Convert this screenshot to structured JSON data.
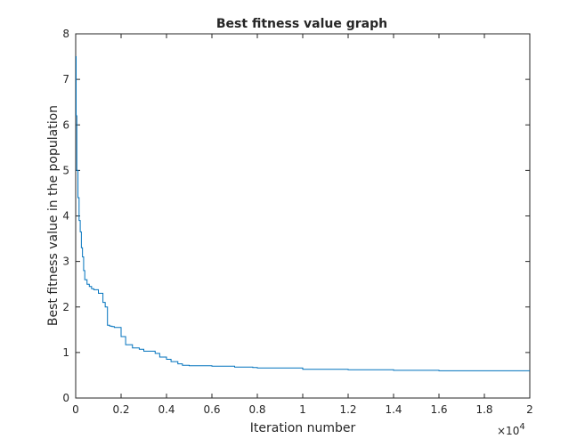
{
  "chart_data": {
    "type": "line",
    "title": "Best fitness value graph",
    "xlabel": "Iteration number",
    "ylabel": "Best fitness value in the population",
    "x_exponent_label": "×10",
    "x_exponent_power": "4",
    "xlim": [
      0,
      2
    ],
    "ylim": [
      0,
      8
    ],
    "x_ticks": [
      "0",
      "0.2",
      "0.4",
      "0.6",
      "0.8",
      "1",
      "1.2",
      "1.4",
      "1.6",
      "1.8",
      "2"
    ],
    "y_ticks": [
      "0",
      "1",
      "2",
      "3",
      "4",
      "5",
      "6",
      "7",
      "8"
    ],
    "grid": false,
    "line_color": "#0072BD",
    "series": [
      {
        "x": [
          0,
          0.002,
          0.005,
          0.01,
          0.015,
          0.02,
          0.025,
          0.03,
          0.035,
          0.04,
          0.05,
          0.06,
          0.07,
          0.08,
          0.1,
          0.12,
          0.13,
          0.14,
          0.15,
          0.16,
          0.17,
          0.19,
          0.2,
          0.22,
          0.25,
          0.28,
          0.3,
          0.35,
          0.37,
          0.4,
          0.42,
          0.45,
          0.47,
          0.5,
          0.6,
          0.7,
          0.78,
          0.8,
          1.0,
          1.2,
          1.4,
          1.6,
          1.8,
          2.0
        ],
        "y": [
          7.5,
          6.2,
          5.0,
          4.4,
          3.9,
          3.65,
          3.3,
          3.1,
          2.8,
          2.6,
          2.5,
          2.45,
          2.4,
          2.38,
          2.3,
          2.1,
          2.0,
          1.6,
          1.58,
          1.57,
          1.55,
          1.55,
          1.35,
          1.17,
          1.1,
          1.07,
          1.03,
          0.98,
          0.9,
          0.85,
          0.8,
          0.75,
          0.72,
          0.71,
          0.7,
          0.68,
          0.67,
          0.66,
          0.63,
          0.62,
          0.61,
          0.6,
          0.6,
          0.6
        ]
      }
    ]
  }
}
